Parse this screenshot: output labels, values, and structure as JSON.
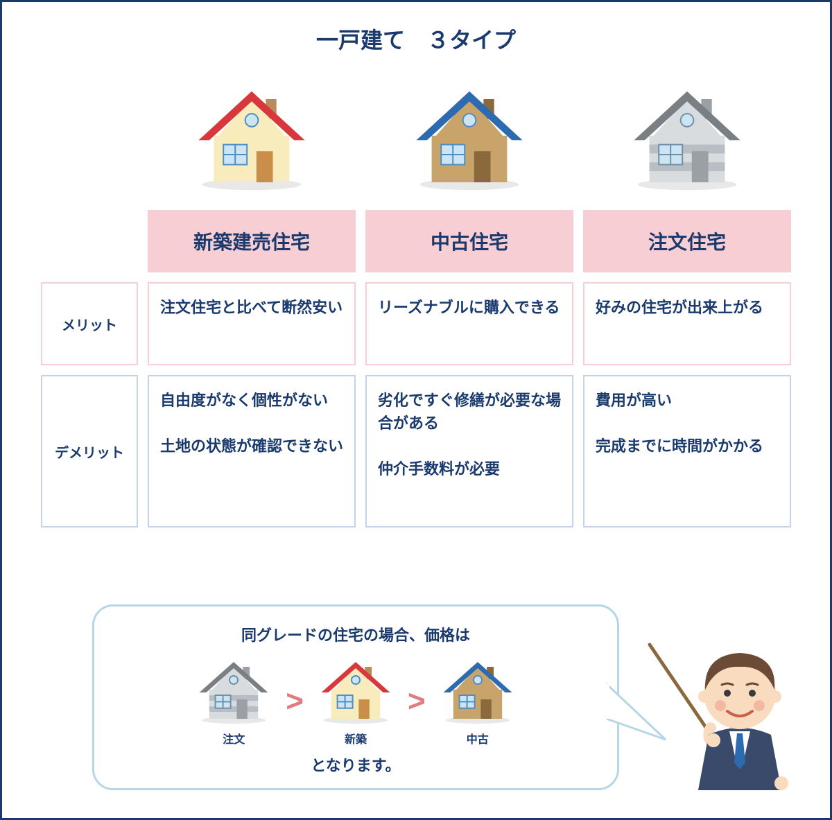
{
  "colors": {
    "frame_border": "#1a3a6e",
    "title_text": "#1a3a6e",
    "header_bg": "#f6ced3",
    "header_text": "#1a3a6e",
    "merit_border": "#f6ced3",
    "merit_text": "#1a3a6e",
    "demerit_border": "#c5d2ee",
    "demerit_text": "#1a3a6e",
    "bubble_border": "#b5d6e6",
    "gt_color": "#e37b7c"
  },
  "title": "一戸建て　３タイプ",
  "row_labels": {
    "merit": "メリット",
    "demerit": "デメリット"
  },
  "types": [
    {
      "name": "新築建売住宅",
      "house": {
        "roof": "#d8383b",
        "wall": "#f9ecbc",
        "window_frame": "#4a8fc7",
        "door": "#c98f4a",
        "chimney": "#b98b5a"
      },
      "merit": "注文住宅と比べて断然安い",
      "demerit": "自由度がなく個性がない\n\n土地の状態が確認できない"
    },
    {
      "name": "中古住宅",
      "house": {
        "roof": "#2d6bb0",
        "wall": "#c9a46a",
        "window_frame": "#4a8fc7",
        "door": "#8a6a3d",
        "chimney": "#8a6a3d"
      },
      "merit": "リーズナブルに購入できる",
      "demerit": "劣化ですぐ修繕が必要な場合がある\n\n仲介手数料が必要"
    },
    {
      "name": "注文住宅",
      "house": {
        "roof": "#7a7f84",
        "wall": "#d9dcde",
        "wall_stripe": "#b8bec3",
        "window_frame": "#7090a8",
        "door": "#9aa0a5",
        "chimney": "#9aa0a5"
      },
      "merit": "好みの住宅が出来上がる",
      "demerit": "費用が高い\n\n完成までに時間がかかる"
    }
  ],
  "bubble": {
    "title": "同グレードの住宅の場合、価格は",
    "footer": "となります。",
    "order": [
      {
        "label": "注文",
        "type_index": 2
      },
      {
        "label": "新築",
        "type_index": 0
      },
      {
        "label": "中古",
        "type_index": 1
      }
    ]
  },
  "presenter": {
    "hair": "#6b4a36",
    "skin": "#f9dcc0",
    "cheek": "#f4b8a0",
    "shirt": "#ffffff",
    "tie": "#2d6bb0",
    "jacket": "#3a4a6a",
    "pointer": "#8a6a3d"
  }
}
